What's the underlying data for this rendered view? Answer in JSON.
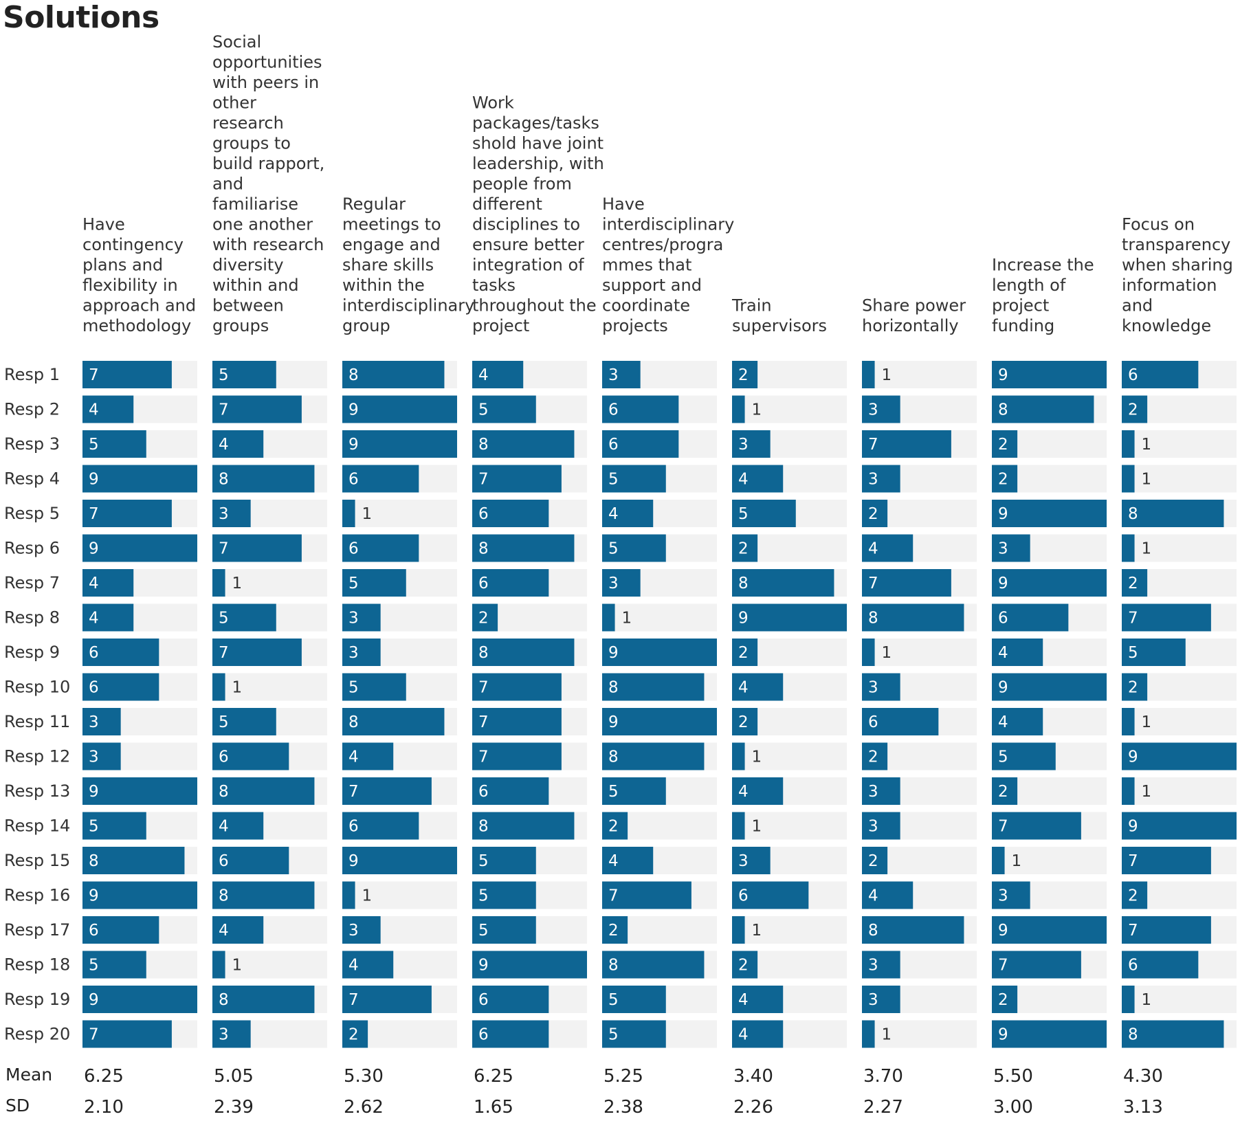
{
  "chart_data": {
    "type": "table",
    "title": "Solutions",
    "max_value": 9,
    "bar_color": "#0e6593",
    "track_color": "#f2f2f2",
    "columns": [
      "Have contingency plans and flexibility in approach and methodology",
      "Social opportunities with peers in other research groups to build rapport, and familiarise one another with research diversity within and between groups",
      "Regular meetings to engage and share skills within the interdisciplinary group",
      "Work packages/tasks shold have joint leadership, with people from different disciplines to ensure better integration of tasks throughout the project",
      "Have interdisciplinary centres/progra mmes that support and coordinate projects",
      "Train supervisors",
      "Share power horizontally",
      "Increase the length of project funding",
      "Focus on transparency when sharing information and knowledge"
    ],
    "column_header_lines": [
      [
        "Have",
        "contingency",
        "plans and",
        "flexibility in",
        "approach and",
        "methodology"
      ],
      [
        "Social",
        "opportunities",
        "with peers in",
        "other",
        "research",
        "groups to",
        "build rapport,",
        "and",
        "familiarise",
        "one another",
        "with research",
        "diversity",
        "within and",
        "between",
        "groups"
      ],
      [
        "Regular",
        "meetings to",
        "engage and",
        "share skills",
        "within the",
        "interdisciplinary",
        "group"
      ],
      [
        "Work",
        "packages/tasks",
        "shold have joint",
        "leadership, with",
        "people from",
        "different",
        "disciplines to",
        "ensure better",
        "integration of",
        "tasks",
        "throughout the",
        "project"
      ],
      [
        "Have",
        "interdisciplinary",
        "centres/progra",
        "mmes that",
        "support and",
        "coordinate",
        "projects"
      ],
      [
        "Train",
        "supervisors"
      ],
      [
        "Share power",
        "horizontally"
      ],
      [
        "Increase the",
        "length of",
        "project",
        "funding"
      ],
      [
        "Focus on",
        "transparency",
        "when sharing",
        "information",
        "and",
        "knowledge"
      ]
    ],
    "rows": [
      {
        "label": "Resp 1",
        "values": [
          7,
          5,
          8,
          4,
          3,
          2,
          1,
          9,
          6
        ]
      },
      {
        "label": "Resp 2",
        "values": [
          4,
          7,
          9,
          5,
          6,
          1,
          3,
          8,
          2
        ]
      },
      {
        "label": "Resp 3",
        "values": [
          5,
          4,
          9,
          8,
          6,
          3,
          7,
          2,
          1
        ]
      },
      {
        "label": "Resp 4",
        "values": [
          9,
          8,
          6,
          7,
          5,
          4,
          3,
          2,
          1
        ]
      },
      {
        "label": "Resp 5",
        "values": [
          7,
          3,
          1,
          6,
          4,
          5,
          2,
          9,
          8
        ]
      },
      {
        "label": "Resp 6",
        "values": [
          9,
          7,
          6,
          8,
          5,
          2,
          4,
          3,
          1
        ]
      },
      {
        "label": "Resp 7",
        "values": [
          4,
          1,
          5,
          6,
          3,
          8,
          7,
          9,
          2
        ]
      },
      {
        "label": "Resp 8",
        "values": [
          4,
          5,
          3,
          2,
          1,
          9,
          8,
          6,
          7
        ]
      },
      {
        "label": "Resp 9",
        "values": [
          6,
          7,
          3,
          8,
          9,
          2,
          1,
          4,
          5
        ]
      },
      {
        "label": "Resp 10",
        "values": [
          6,
          1,
          5,
          7,
          8,
          4,
          3,
          9,
          2
        ]
      },
      {
        "label": "Resp 11",
        "values": [
          3,
          5,
          8,
          7,
          9,
          2,
          6,
          4,
          1
        ]
      },
      {
        "label": "Resp 12",
        "values": [
          3,
          6,
          4,
          7,
          8,
          1,
          2,
          5,
          9
        ]
      },
      {
        "label": "Resp 13",
        "values": [
          9,
          8,
          7,
          6,
          5,
          4,
          3,
          2,
          1
        ]
      },
      {
        "label": "Resp 14",
        "values": [
          5,
          4,
          6,
          8,
          2,
          1,
          3,
          7,
          9
        ]
      },
      {
        "label": "Resp 15",
        "values": [
          8,
          6,
          9,
          5,
          4,
          3,
          2,
          1,
          7
        ]
      },
      {
        "label": "Resp 16",
        "values": [
          9,
          8,
          1,
          5,
          7,
          6,
          4,
          3,
          2
        ]
      },
      {
        "label": "Resp 17",
        "values": [
          6,
          4,
          3,
          5,
          2,
          1,
          8,
          9,
          7
        ]
      },
      {
        "label": "Resp 18",
        "values": [
          5,
          1,
          4,
          9,
          8,
          2,
          3,
          7,
          6
        ]
      },
      {
        "label": "Resp 19",
        "values": [
          9,
          8,
          7,
          6,
          5,
          4,
          3,
          2,
          1
        ]
      },
      {
        "label": "Resp 20",
        "values": [
          7,
          3,
          2,
          6,
          5,
          4,
          1,
          9,
          8
        ]
      }
    ],
    "summary": [
      {
        "label": "Mean",
        "values": [
          "6.25",
          "5.05",
          "5.30",
          "6.25",
          "5.25",
          "3.40",
          "3.70",
          "5.50",
          "4.30"
        ]
      },
      {
        "label": "SD",
        "values": [
          "2.10",
          "2.39",
          "2.62",
          "1.65",
          "2.38",
          "2.26",
          "2.27",
          "3.00",
          "3.13"
        ]
      }
    ]
  }
}
